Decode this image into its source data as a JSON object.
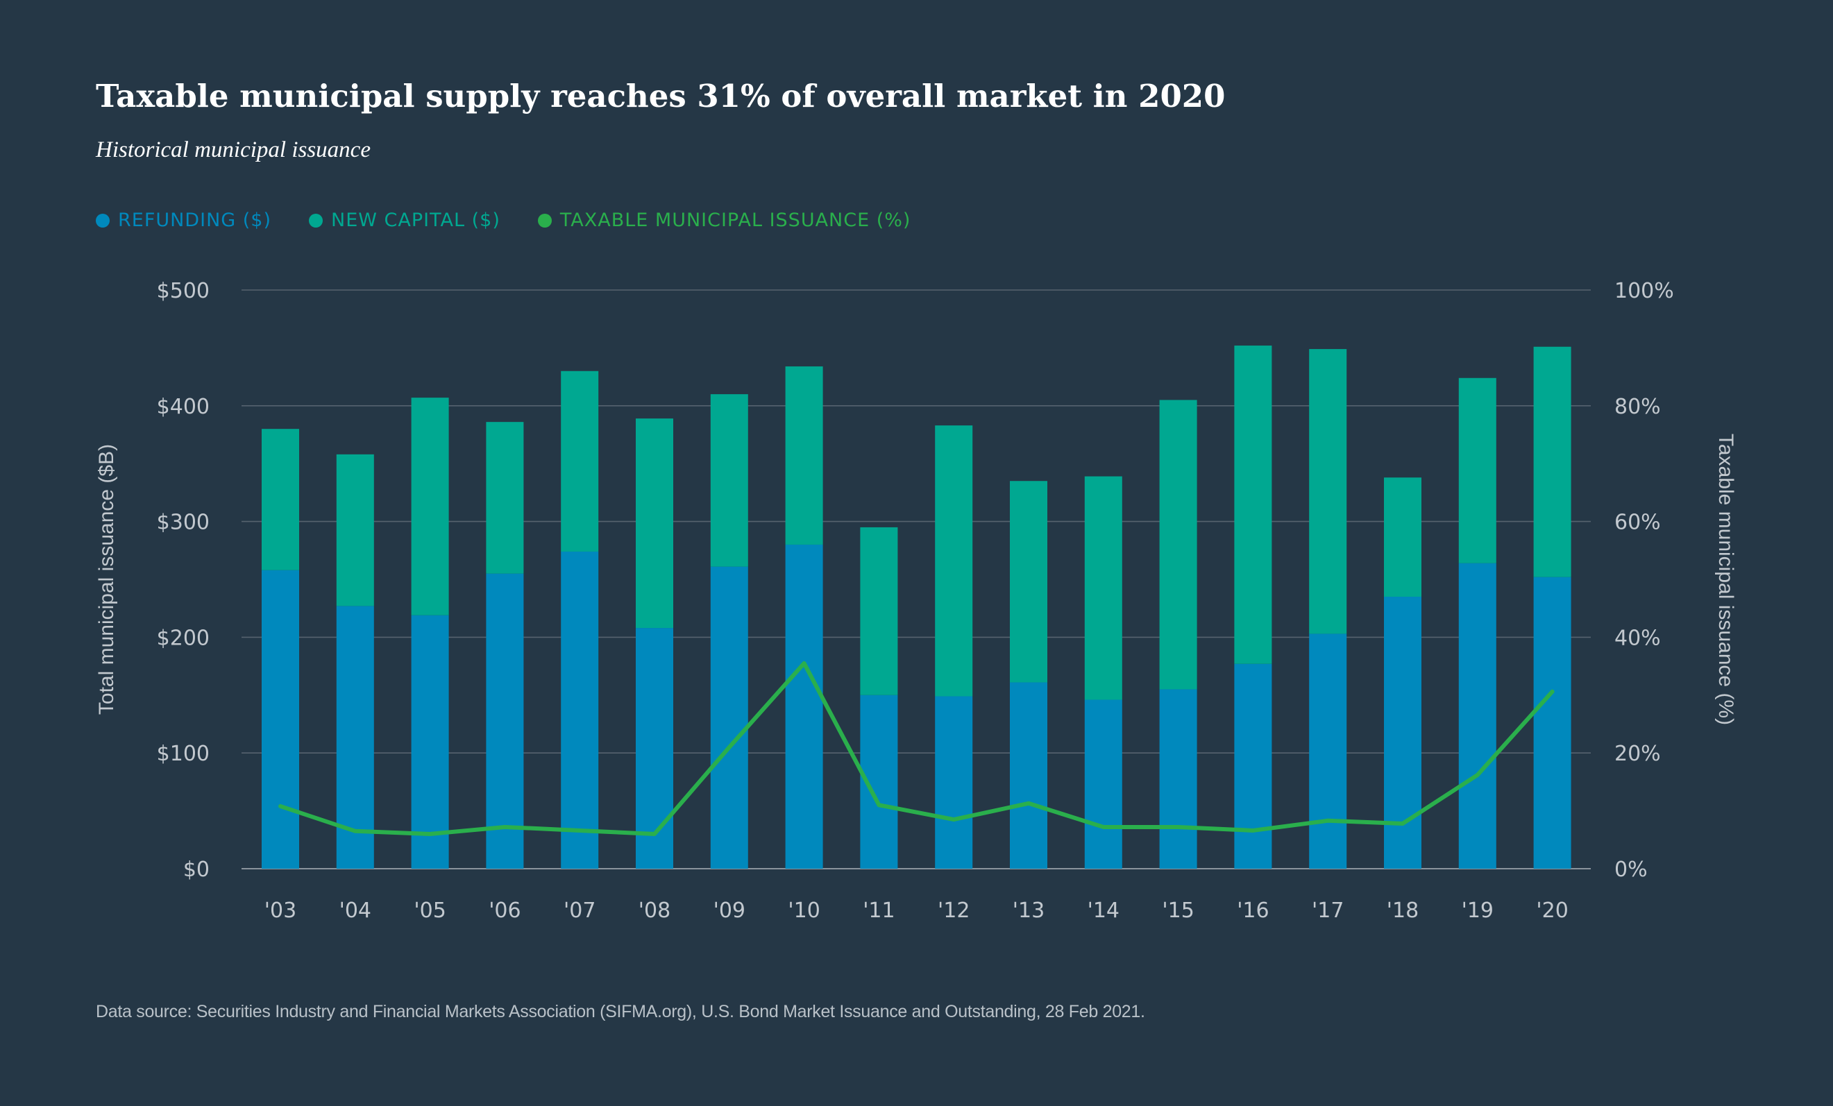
{
  "title": "Taxable municipal supply reaches 31% of overall market in 2020",
  "subtitle": "Historical municipal issuance",
  "legend": [
    {
      "label": "REFUNDING ($)",
      "color": "#0089bd"
    },
    {
      "label": "NEW CAPITAL ($)",
      "color": "#00a891"
    },
    {
      "label": "TAXABLE MUNICIPAL ISSUANCE (%)",
      "color": "#2aaf4c"
    }
  ],
  "source": "Data source: Securities Industry and Financial Markets Association (SIFMA.org), U.S. Bond Market Issuance and Outstanding, 28 Feb 2021.",
  "chart_data": {
    "type": "bar",
    "stacked": true,
    "title": "Taxable municipal supply reaches 31% of overall market in 2020",
    "subtitle": "Historical municipal issuance",
    "categories": [
      "'03",
      "'04",
      "'05",
      "'06",
      "'07",
      "'08",
      "'09",
      "'10",
      "'11",
      "'12",
      "'13",
      "'14",
      "'15",
      "'16",
      "'17",
      "'18",
      "'19",
      "'20"
    ],
    "series": [
      {
        "name": "REFUNDING ($)",
        "type": "bar",
        "axis": "left",
        "color": "#0089bd",
        "values": [
          258,
          227,
          219,
          255,
          274,
          208,
          261,
          280,
          150,
          149,
          161,
          146,
          155,
          177,
          203,
          235,
          264,
          252
        ]
      },
      {
        "name": "NEW CAPITAL ($)",
        "type": "bar",
        "axis": "left",
        "color": "#00a891",
        "values": [
          122,
          131,
          188,
          131,
          156,
          181,
          149,
          154,
          145,
          234,
          174,
          193,
          250,
          275,
          246,
          103,
          160,
          199
        ]
      },
      {
        "name": "TAXABLE MUNICIPAL ISSUANCE (%)",
        "type": "line",
        "axis": "right",
        "color": "#2aaf4c",
        "values": [
          10.8,
          6.5,
          6.0,
          7.2,
          6.6,
          6.0,
          21.0,
          35.5,
          11.0,
          8.5,
          11.3,
          7.2,
          7.2,
          6.6,
          8.3,
          7.8,
          16.2,
          30.6
        ]
      }
    ],
    "ylabel": "Total municipal issuance ($B)",
    "y2label": "Taxable municipal issuance (%)",
    "ylim": [
      0,
      500
    ],
    "y2lim": [
      0,
      100
    ],
    "yticks": [
      0,
      100,
      200,
      300,
      400,
      500
    ],
    "ytick_labels": [
      "$0",
      "$100",
      "$200",
      "$300",
      "$400",
      "$500"
    ],
    "y2ticks": [
      0,
      20,
      40,
      60,
      80,
      100
    ],
    "y2tick_labels": [
      "0%",
      "20%",
      "40%",
      "60%",
      "80%",
      "100%"
    ],
    "grid": true,
    "legend_position": "top-left"
  }
}
